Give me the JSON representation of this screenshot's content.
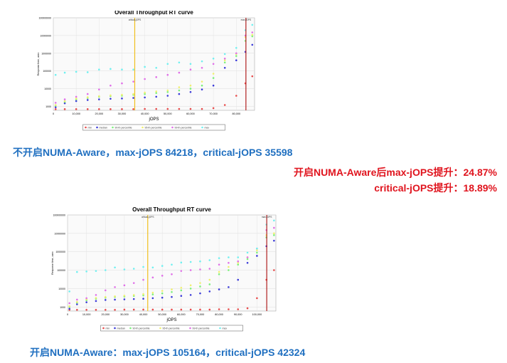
{
  "notes": {
    "without_numa": "不开启NUMA-Aware，max-jOPS 84218，critical-jOPS 35598",
    "gain_max": "开启NUMA-Aware后max-jOPS提升：24.87%",
    "gain_critical": "critical-jOPS提升：18.89%",
    "with_numa": "开启NUMA-Aware：max-jOPS 105164，critical-jOPS 42324"
  },
  "colors": {
    "min": "#e84c4c",
    "median": "#3c3cd8",
    "p90": "#7cf07c",
    "p95": "#f0f070",
    "p99": "#e070e8",
    "max": "#70f0f0",
    "critical_line": "#f0c020",
    "max_line": "#b02020"
  },
  "chart_data": [
    {
      "type": "scatter",
      "title": "Overall Throughput RT curve",
      "xlabel": "jOPS",
      "ylabel": "Response time, usec",
      "xlim": [
        0,
        88000
      ],
      "ylim": [
        600,
        100000000
      ],
      "yscale": "log",
      "xticks": [
        "0",
        "10,000",
        "20,000",
        "30,000",
        "40,000",
        "50,000",
        "60,000",
        "70,000",
        "80,000"
      ],
      "xtick_values": [
        0,
        10000,
        20000,
        30000,
        40000,
        50000,
        60000,
        70000,
        80000
      ],
      "yticks": [
        "1000",
        "10000",
        "100000",
        "1000000",
        "10000000",
        "100000000"
      ],
      "ytick_values": [
        1000,
        10000,
        100000,
        1000000,
        10000000,
        100000000
      ],
      "markers": [
        {
          "label": "critical-jOPS",
          "x": 35598
        },
        {
          "label": "max-jOPS",
          "x": 84218
        }
      ],
      "legend": [
        "min",
        "median",
        "90-th percentile",
        "95-th percentile",
        "99-th percentile",
        "max"
      ],
      "legend_position": "bottom",
      "x": [
        1000,
        5000,
        10000,
        15000,
        20000,
        25000,
        30000,
        35000,
        40000,
        45000,
        50000,
        55000,
        60000,
        65000,
        70000,
        75000,
        80000,
        84000,
        87000
      ],
      "series": [
        {
          "name": "min",
          "values": [
            700,
            700,
            700,
            700,
            700,
            700,
            700,
            700,
            720,
            720,
            720,
            720,
            720,
            720,
            800,
            1200,
            4000,
            20000,
            50000
          ]
        },
        {
          "name": "median",
          "values": [
            900,
            1500,
            2000,
            2300,
            2500,
            2700,
            2800,
            3000,
            3200,
            3500,
            4000,
            5000,
            6500,
            9000,
            15000,
            150000,
            400000,
            1200000,
            3000000
          ]
        },
        {
          "name": "90-th percentile",
          "values": [
            1100,
            1800,
            2500,
            3000,
            3500,
            3800,
            4000,
            4500,
            5000,
            5700,
            6500,
            8000,
            10000,
            15000,
            40000,
            300000,
            700000,
            5000000,
            9000000
          ]
        },
        {
          "name": "95-th percentile",
          "values": [
            1200,
            2000,
            2800,
            3300,
            3800,
            4200,
            4500,
            5000,
            6000,
            7000,
            8000,
            12000,
            15000,
            25000,
            70000,
            400000,
            900000,
            8000000,
            11000000
          ]
        },
        {
          "name": "99-th percentile",
          "values": [
            1600,
            2500,
            3500,
            5000,
            9000,
            15000,
            20000,
            25000,
            35000,
            45000,
            60000,
            80000,
            120000,
            150000,
            250000,
            500000,
            1000000,
            10000000,
            15000000
          ]
        },
        {
          "name": "max",
          "values": [
            60000,
            80000,
            90000,
            85000,
            120000,
            130000,
            120000,
            120000,
            170000,
            150000,
            250000,
            300000,
            250000,
            350000,
            500000,
            900000,
            2000000,
            20000000,
            40000000
          ]
        }
      ]
    },
    {
      "type": "scatter",
      "title": "Overall Throughput RT curve",
      "xlabel": "jOPS",
      "ylabel": "Response time, usec",
      "xlim": [
        0,
        110000
      ],
      "ylim": [
        600,
        100000000
      ],
      "yscale": "log",
      "xticks": [
        "0",
        "10,000",
        "20,000",
        "30,000",
        "40,000",
        "50,000",
        "60,000",
        "70,000",
        "80,000",
        "90,000",
        "100,000"
      ],
      "xtick_values": [
        0,
        10000,
        20000,
        30000,
        40000,
        50000,
        60000,
        70000,
        80000,
        90000,
        100000
      ],
      "yticks": [
        "1000",
        "10000",
        "100000",
        "1000000",
        "10000000",
        "100000000"
      ],
      "ytick_values": [
        1000,
        10000,
        100000,
        1000000,
        10000000,
        100000000
      ],
      "markers": [
        {
          "label": "critical-jOPS",
          "x": 42324
        },
        {
          "label": "max-jOPS",
          "x": 105164
        }
      ],
      "legend": [
        "min",
        "median",
        "90-th percentile",
        "95-th percentile",
        "99-th percentile",
        "max"
      ],
      "legend_position": "bottom",
      "x": [
        1000,
        5000,
        10000,
        15000,
        20000,
        25000,
        30000,
        35000,
        40000,
        45000,
        50000,
        55000,
        60000,
        65000,
        70000,
        75000,
        80000,
        85000,
        90000,
        95000,
        100000,
        105000,
        109000
      ],
      "series": [
        {
          "name": "min",
          "values": [
            700,
            700,
            700,
            700,
            700,
            700,
            720,
            720,
            720,
            720,
            720,
            720,
            720,
            720,
            720,
            720,
            750,
            750,
            750,
            850,
            3000,
            30000,
            100000
          ]
        },
        {
          "name": "median",
          "values": [
            800,
            1400,
            1800,
            2100,
            2400,
            2500,
            2600,
            2700,
            2800,
            3000,
            3200,
            3500,
            4000,
            4500,
            5500,
            7000,
            9000,
            12000,
            30000,
            250000,
            600000,
            2000000,
            4000000
          ]
        },
        {
          "name": "90-th percentile",
          "values": [
            1000,
            1700,
            2300,
            2800,
            3200,
            3500,
            3700,
            4000,
            4300,
            4800,
            5500,
            6500,
            8000,
            10000,
            13000,
            17000,
            60000,
            100000,
            200000,
            400000,
            900000,
            6000000,
            8000000
          ]
        },
        {
          "name": "95-th percentile",
          "values": [
            1100,
            1900,
            2600,
            3100,
            3500,
            3800,
            4100,
            4500,
            5000,
            6000,
            7500,
            9000,
            11000,
            15000,
            20000,
            30000,
            80000,
            150000,
            250000,
            500000,
            1200000,
            8000000,
            10000000
          ]
        },
        {
          "name": "99-th percentile",
          "values": [
            1600,
            2500,
            3000,
            4500,
            8000,
            12000,
            15000,
            20000,
            30000,
            40000,
            50000,
            60000,
            90000,
            100000,
            110000,
            120000,
            200000,
            250000,
            300000,
            500000,
            1500000,
            15000000,
            20000000
          ]
        },
        {
          "name": "max",
          "values": [
            7000,
            80000,
            85000,
            90000,
            100000,
            140000,
            110000,
            120000,
            150000,
            140000,
            170000,
            200000,
            260000,
            280000,
            300000,
            350000,
            450000,
            500000,
            500000,
            900000,
            1500000,
            30000000,
            50000000
          ]
        }
      ]
    }
  ]
}
